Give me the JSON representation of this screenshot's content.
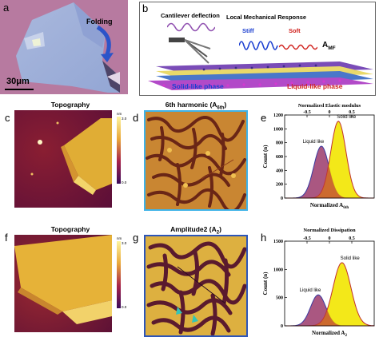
{
  "panels": {
    "a": {
      "label": "a",
      "scale_bar": "30μm",
      "arrow_label": "Folding"
    },
    "b": {
      "label": "b",
      "cantilever": "Cantilever deflection",
      "local": "Local Mechanical Response",
      "stiff": "Stiff",
      "soft": "Soft",
      "amf": "A",
      "amf_sub": "MF",
      "solid_phase": "Solid-like phase",
      "liquid_phase": "Liquid-like phase"
    },
    "c": {
      "label": "c",
      "title": "Topography",
      "cb_unit": "nm",
      "cb_max": "3.0",
      "cb_min": "0.0"
    },
    "d": {
      "label": "d",
      "title": "6th  harmonic (A",
      "title_sub": "6th",
      "title_end": ")"
    },
    "e": {
      "label": "e"
    },
    "f": {
      "label": "f",
      "title": "Topography",
      "cb_unit": "nm",
      "cb_max": "3.0",
      "cb_min": "0.0"
    },
    "g": {
      "label": "g",
      "title": "Amplitude2 (A",
      "title_sub": "2",
      "title_end": ")"
    },
    "h": {
      "label": "h"
    }
  },
  "chart_data": [
    {
      "type": "area",
      "panel": "e",
      "title": "",
      "top_xlabel": "Normalized Elastic modulus",
      "xlabel": "Normalized A",
      "xlabel_sub": "6th",
      "ylabel": "Count (n)",
      "xlim": [
        -1.0,
        1.0
      ],
      "top_xticks": [
        -0.5,
        0.0,
        0.5
      ],
      "ylim": [
        0,
        1200
      ],
      "yticks": [
        0,
        200,
        400,
        600,
        800,
        1000,
        1200
      ],
      "series": [
        {
          "name": "Liquid like",
          "color": "#9b3a6b",
          "mean": -0.18,
          "sigma": 0.17,
          "peak": 750
        },
        {
          "name": "Solid like",
          "color": "#f2e600",
          "mean": 0.2,
          "sigma": 0.17,
          "peak": 1110
        }
      ]
    },
    {
      "type": "area",
      "panel": "h",
      "title": "",
      "top_xlabel": "Normalized Dissipation",
      "xlabel": "Normalized A",
      "xlabel_sub": "2",
      "ylabel": "Count (n)",
      "xlim": [
        -1.0,
        1.0
      ],
      "top_xticks": [
        -0.5,
        0.0,
        0.5
      ],
      "ylim": [
        0,
        1500
      ],
      "yticks": [
        0,
        500,
        1000,
        1500
      ],
      "series": [
        {
          "name": "Liquid like",
          "color": "#9b3a6b",
          "mean": -0.25,
          "sigma": 0.17,
          "peak": 550
        },
        {
          "name": "Solid like",
          "color": "#f2e600",
          "mean": 0.28,
          "sigma": 0.2,
          "peak": 1120
        }
      ]
    }
  ]
}
